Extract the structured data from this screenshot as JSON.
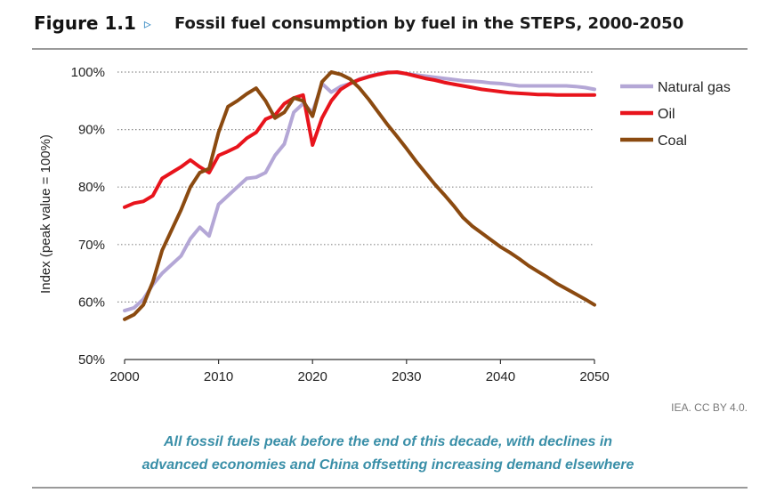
{
  "figure": {
    "label": "Figure 1.1",
    "marker": "▹",
    "title": "Fossil fuel consumption by fuel in the STEPS, 2000-2050"
  },
  "credit": "IEA. CC BY 4.0.",
  "caption": {
    "line1": "All fossil fuels peak before the end of this decade, with declines in",
    "line2": "advanced economies and China offsetting increasing demand elsewhere"
  },
  "colors": {
    "natural_gas": "#b4a7d6",
    "oil": "#e8141c",
    "coal": "#8b4a10",
    "grid": "#8c8c8c",
    "caption": "#3a8fa8"
  },
  "chart_data": {
    "type": "line",
    "ylabel": "Index (peak value = 100%)",
    "xlabel": "",
    "xlim": [
      2000,
      2050
    ],
    "ylim": [
      50,
      100
    ],
    "x_ticks": [
      2000,
      2010,
      2020,
      2030,
      2040,
      2050
    ],
    "y_ticks": [
      50,
      60,
      70,
      80,
      90,
      100
    ],
    "y_tick_labels": [
      "50%",
      "60%",
      "70%",
      "80%",
      "90%",
      "100%"
    ],
    "grid": "horizontal-dotted",
    "legend_position": "right",
    "x": [
      2000,
      2001,
      2002,
      2003,
      2004,
      2005,
      2006,
      2007,
      2008,
      2009,
      2010,
      2011,
      2012,
      2013,
      2014,
      2015,
      2016,
      2017,
      2018,
      2019,
      2020,
      2021,
      2022,
      2023,
      2024,
      2025,
      2026,
      2027,
      2028,
      2029,
      2030,
      2031,
      2032,
      2033,
      2034,
      2035,
      2036,
      2037,
      2038,
      2039,
      2040,
      2041,
      2042,
      2043,
      2044,
      2045,
      2046,
      2047,
      2048,
      2049,
      2050
    ],
    "series": [
      {
        "name": "Natural gas",
        "color": "#b4a7d6",
        "values": [
          58.5,
          59.0,
          60.5,
          63.0,
          65.0,
          66.5,
          68.0,
          71.0,
          73.0,
          71.5,
          77.0,
          78.5,
          80.0,
          81.5,
          81.7,
          82.5,
          85.5,
          87.5,
          93.0,
          94.5,
          93.0,
          98.0,
          96.5,
          97.5,
          98.0,
          98.8,
          99.3,
          99.7,
          100.0,
          99.9,
          99.7,
          99.5,
          99.3,
          99.1,
          98.9,
          98.7,
          98.5,
          98.4,
          98.3,
          98.1,
          98.0,
          97.8,
          97.6,
          97.6,
          97.6,
          97.6,
          97.6,
          97.6,
          97.5,
          97.3,
          97.0
        ]
      },
      {
        "name": "Oil",
        "color": "#e8141c",
        "values": [
          76.5,
          77.2,
          77.5,
          78.5,
          81.5,
          82.5,
          83.5,
          84.7,
          83.5,
          82.5,
          85.5,
          86.2,
          87.0,
          88.5,
          89.5,
          91.8,
          92.5,
          94.5,
          95.5,
          96.0,
          87.3,
          92.0,
          95.0,
          97.0,
          98.0,
          98.7,
          99.2,
          99.6,
          99.9,
          100.0,
          99.7,
          99.3,
          98.9,
          98.6,
          98.2,
          97.9,
          97.6,
          97.3,
          97.0,
          96.8,
          96.6,
          96.4,
          96.3,
          96.2,
          96.1,
          96.1,
          96.0,
          96.0,
          96.0,
          96.0,
          96.0
        ]
      },
      {
        "name": "Coal",
        "color": "#8b4a10",
        "values": [
          57.0,
          57.8,
          59.5,
          63.5,
          69.0,
          72.5,
          76.0,
          80.0,
          82.5,
          83.2,
          89.5,
          94.0,
          95.0,
          96.2,
          97.2,
          95.0,
          92.0,
          93.0,
          95.5,
          95.0,
          92.3,
          98.3,
          100.0,
          99.6,
          98.8,
          97.2,
          95.2,
          93.0,
          90.8,
          88.8,
          86.7,
          84.5,
          82.5,
          80.5,
          78.7,
          76.8,
          74.7,
          73.2,
          72.0,
          70.8,
          69.6,
          68.6,
          67.5,
          66.3,
          65.3,
          64.3,
          63.2,
          62.3,
          61.4,
          60.5,
          59.5
        ]
      }
    ]
  }
}
